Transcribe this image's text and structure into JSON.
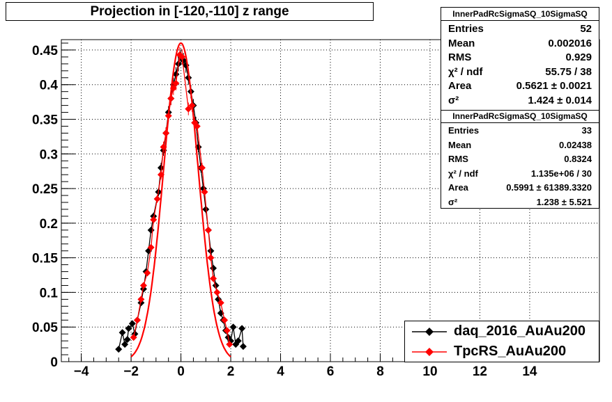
{
  "title": "Projection in [-120,-110] z range",
  "stats": [
    {
      "name": "InnerPadRcSigmaSQ_10SigmaSQ",
      "rows": [
        {
          "label": "Entries",
          "value": "52"
        },
        {
          "label": "Mean",
          "value": "0.002016"
        },
        {
          "label": "RMS",
          "value": "0.929"
        },
        {
          "label": "χ² / ndf",
          "value": "55.75 / 38"
        },
        {
          "label": "Area",
          "value": "0.5621 ± 0.0021"
        },
        {
          "label": "σ²",
          "value": "1.424 ± 0.014"
        }
      ]
    },
    {
      "name": "InnerPadRcSigmaSQ_10SigmaSQ",
      "rows": [
        {
          "label": "Entries",
          "value": "33"
        },
        {
          "label": "Mean",
          "value": "0.02438"
        },
        {
          "label": "RMS",
          "value": "0.8324"
        },
        {
          "label": "χ² / ndf",
          "value": "1.135e+06 / 30"
        },
        {
          "label": "Area",
          "value": "0.5991 ± 61389.3320"
        },
        {
          "label": "σ²",
          "value": "1.238 ± 5.521"
        }
      ]
    }
  ],
  "legend": [
    {
      "label": "daq_2016_AuAu200",
      "color": "#000000"
    },
    {
      "label": "TpcRS_AuAu200",
      "color": "#ff0000"
    }
  ],
  "chart_data": {
    "type": "scatter",
    "title": "Projection in [-120,-110] z range",
    "xlim": [
      -4.8,
      16.8
    ],
    "ylim": [
      0,
      0.465
    ],
    "xticks": [
      "−4",
      "−2",
      "0",
      "2",
      "4",
      "6",
      "8",
      "10",
      "12",
      "14"
    ],
    "xtick_values": [
      -4,
      -2,
      0,
      2,
      4,
      6,
      8,
      10,
      12,
      14
    ],
    "yticks": [
      "0",
      "0.05",
      "0.1",
      "0.15",
      "0.2",
      "0.25",
      "0.3",
      "0.35",
      "0.4",
      "0.45"
    ],
    "ytick_values": [
      0,
      0.05,
      0.1,
      0.15,
      0.2,
      0.25,
      0.3,
      0.35,
      0.4,
      0.45
    ],
    "grid": true,
    "series": [
      {
        "name": "daq_2016_AuAu200",
        "color": "#000000",
        "points": [
          [
            -2.5,
            0.018
          ],
          [
            -2.35,
            0.042
          ],
          [
            -2.25,
            0.025
          ],
          [
            -2.15,
            0.032
          ],
          [
            -2.1,
            0.048
          ],
          [
            -1.95,
            0.055
          ],
          [
            -1.85,
            0.04
          ],
          [
            -1.75,
            0.06
          ],
          [
            -1.6,
            0.085
          ],
          [
            -1.5,
            0.105
          ],
          [
            -1.4,
            0.13
          ],
          [
            -1.3,
            0.16
          ],
          [
            -1.2,
            0.19
          ],
          [
            -1.1,
            0.21
          ],
          [
            -0.9,
            0.245
          ],
          [
            -0.8,
            0.28
          ],
          [
            -0.7,
            0.305
          ],
          [
            -0.6,
            0.33
          ],
          [
            -0.5,
            0.36
          ],
          [
            -0.4,
            0.38
          ],
          [
            -0.3,
            0.4
          ],
          [
            -0.2,
            0.415
          ],
          [
            -0.1,
            0.43
          ],
          [
            0.0,
            0.44
          ],
          [
            0.1,
            0.435
          ],
          [
            0.2,
            0.428
          ],
          [
            0.3,
            0.41
          ],
          [
            0.4,
            0.39
          ],
          [
            0.5,
            0.37
          ],
          [
            0.6,
            0.345
          ],
          [
            0.7,
            0.31
          ],
          [
            0.8,
            0.28
          ],
          [
            0.9,
            0.25
          ],
          [
            1.0,
            0.22
          ],
          [
            1.1,
            0.19
          ],
          [
            1.2,
            0.16
          ],
          [
            1.3,
            0.135
          ],
          [
            1.4,
            0.11
          ],
          [
            1.5,
            0.09
          ],
          [
            1.6,
            0.07
          ],
          [
            1.7,
            0.06
          ],
          [
            1.8,
            0.045
          ],
          [
            1.9,
            0.035
          ],
          [
            2.0,
            0.03
          ],
          [
            2.1,
            0.05
          ],
          [
            2.2,
            0.025
          ],
          [
            2.3,
            0.03
          ],
          [
            2.45,
            0.048
          ],
          [
            2.5,
            0.022
          ]
        ]
      },
      {
        "name": "TpcRS_AuAu200",
        "color": "#ff0000",
        "fit": {
          "area": 0.5621,
          "sigma2": 1.424
        },
        "points": [
          [
            -1.9,
            0.035
          ],
          [
            -1.75,
            0.06
          ],
          [
            -1.6,
            0.09
          ],
          [
            -1.5,
            0.11
          ],
          [
            -1.35,
            0.128
          ],
          [
            -1.2,
            0.165
          ],
          [
            -1.1,
            0.205
          ],
          [
            -0.95,
            0.235
          ],
          [
            -0.8,
            0.27
          ],
          [
            -0.7,
            0.31
          ],
          [
            -0.6,
            0.33
          ],
          [
            -0.5,
            0.355
          ],
          [
            -0.4,
            0.38
          ],
          [
            -0.3,
            0.395
          ],
          [
            -0.2,
            0.402
          ],
          [
            -0.05,
            0.443
          ],
          [
            0.05,
            0.44
          ],
          [
            0.3,
            0.365
          ],
          [
            0.45,
            0.37
          ],
          [
            0.55,
            0.345
          ],
          [
            0.65,
            0.34
          ],
          [
            0.85,
            0.28
          ],
          [
            0.95,
            0.245
          ],
          [
            1.1,
            0.19
          ],
          [
            1.2,
            0.15
          ],
          [
            1.3,
            0.12
          ],
          [
            1.45,
            0.1
          ],
          [
            1.6,
            0.085
          ],
          [
            1.75,
            0.06
          ],
          [
            1.85,
            0.045
          ],
          [
            1.95,
            0.025
          ]
        ]
      }
    ]
  }
}
